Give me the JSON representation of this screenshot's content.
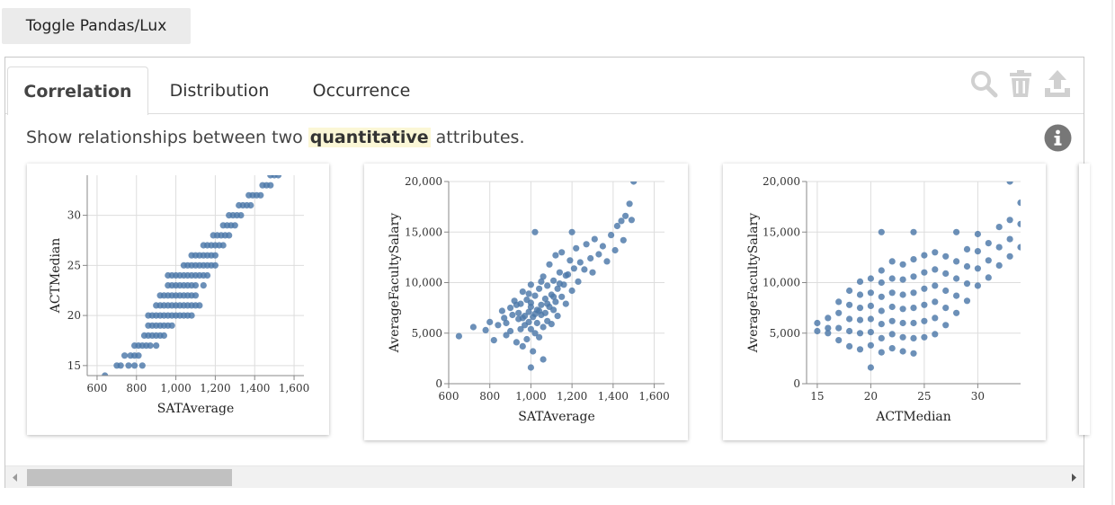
{
  "toggle": {
    "label": "Toggle Pandas/Lux"
  },
  "tabs": [
    {
      "label": "Correlation",
      "active": true
    },
    {
      "label": "Distribution",
      "active": false
    },
    {
      "label": "Occurrence",
      "active": false
    }
  ],
  "toolbar": {
    "icons": [
      "search-icon",
      "trash-icon",
      "upload-icon"
    ],
    "icon_color": "#d0d0d0"
  },
  "description": {
    "before": "Show relationships between two ",
    "highlight": "quantitative",
    "after": " attributes."
  },
  "info": {
    "icon": "info-icon",
    "color": "#777777"
  },
  "colors": {
    "mark": "#4c78a8",
    "grid": "#dddddd",
    "highlight": "#fbf7d6"
  },
  "chart_data": [
    {
      "type": "scatter",
      "xlabel": "SATAverage",
      "ylabel": "ACTMedian",
      "xlim": [
        550,
        1650
      ],
      "ylim": [
        14,
        34
      ],
      "xticks": [
        600,
        800,
        1000,
        1200,
        1400,
        1600
      ],
      "xtick_labels": [
        "600",
        "800",
        "1,000",
        "1,200",
        "1,400",
        "1,600"
      ],
      "yticks": [
        15,
        20,
        25,
        30
      ],
      "ytick_labels": [
        "15",
        "20",
        "25",
        "30"
      ],
      "points": [
        [
          640,
          14
        ],
        [
          700,
          15
        ],
        [
          720,
          15
        ],
        [
          760,
          15
        ],
        [
          790,
          15
        ],
        [
          830,
          15
        ],
        [
          740,
          16
        ],
        [
          770,
          16
        ],
        [
          790,
          16
        ],
        [
          810,
          16
        ],
        [
          790,
          17
        ],
        [
          810,
          17
        ],
        [
          830,
          17
        ],
        [
          850,
          17
        ],
        [
          870,
          17
        ],
        [
          900,
          17
        ],
        [
          840,
          18
        ],
        [
          860,
          18
        ],
        [
          880,
          18
        ],
        [
          900,
          18
        ],
        [
          920,
          18
        ],
        [
          940,
          18
        ],
        [
          860,
          19
        ],
        [
          880,
          19
        ],
        [
          900,
          19
        ],
        [
          920,
          19
        ],
        [
          940,
          19
        ],
        [
          960,
          19
        ],
        [
          980,
          19
        ],
        [
          860,
          20
        ],
        [
          880,
          20
        ],
        [
          900,
          20
        ],
        [
          920,
          20
        ],
        [
          940,
          20
        ],
        [
          960,
          20
        ],
        [
          980,
          20
        ],
        [
          1000,
          20
        ],
        [
          1020,
          20
        ],
        [
          1040,
          20
        ],
        [
          1060,
          20
        ],
        [
          1080,
          20
        ],
        [
          900,
          21
        ],
        [
          920,
          21
        ],
        [
          940,
          21
        ],
        [
          960,
          21
        ],
        [
          980,
          21
        ],
        [
          1000,
          21
        ],
        [
          1020,
          21
        ],
        [
          1040,
          21
        ],
        [
          1060,
          21
        ],
        [
          1080,
          21
        ],
        [
          1100,
          21
        ],
        [
          1120,
          21
        ],
        [
          920,
          22
        ],
        [
          940,
          22
        ],
        [
          960,
          22
        ],
        [
          980,
          22
        ],
        [
          1000,
          22
        ],
        [
          1020,
          22
        ],
        [
          1040,
          22
        ],
        [
          1060,
          22
        ],
        [
          1080,
          22
        ],
        [
          1100,
          22
        ],
        [
          960,
          23
        ],
        [
          980,
          23
        ],
        [
          1000,
          23
        ],
        [
          1020,
          23
        ],
        [
          1040,
          23
        ],
        [
          1060,
          23
        ],
        [
          1080,
          23
        ],
        [
          1100,
          23
        ],
        [
          1140,
          23
        ],
        [
          960,
          24
        ],
        [
          980,
          24
        ],
        [
          1000,
          24
        ],
        [
          1020,
          24
        ],
        [
          1040,
          24
        ],
        [
          1060,
          24
        ],
        [
          1080,
          24
        ],
        [
          1100,
          24
        ],
        [
          1120,
          24
        ],
        [
          1140,
          24
        ],
        [
          1160,
          24
        ],
        [
          1040,
          25
        ],
        [
          1060,
          25
        ],
        [
          1080,
          25
        ],
        [
          1100,
          25
        ],
        [
          1120,
          25
        ],
        [
          1140,
          25
        ],
        [
          1160,
          25
        ],
        [
          1180,
          25
        ],
        [
          1200,
          25
        ],
        [
          1080,
          26
        ],
        [
          1100,
          26
        ],
        [
          1120,
          26
        ],
        [
          1140,
          26
        ],
        [
          1160,
          26
        ],
        [
          1180,
          26
        ],
        [
          1200,
          26
        ],
        [
          1140,
          27
        ],
        [
          1160,
          27
        ],
        [
          1180,
          27
        ],
        [
          1200,
          27
        ],
        [
          1220,
          27
        ],
        [
          1240,
          27
        ],
        [
          1190,
          28
        ],
        [
          1210,
          28
        ],
        [
          1230,
          28
        ],
        [
          1250,
          28
        ],
        [
          1270,
          28
        ],
        [
          1240,
          29
        ],
        [
          1260,
          29
        ],
        [
          1280,
          29
        ],
        [
          1300,
          29
        ],
        [
          1270,
          30
        ],
        [
          1290,
          30
        ],
        [
          1310,
          30
        ],
        [
          1330,
          30
        ],
        [
          1320,
          31
        ],
        [
          1340,
          31
        ],
        [
          1360,
          31
        ],
        [
          1380,
          31
        ],
        [
          1370,
          32
        ],
        [
          1390,
          32
        ],
        [
          1410,
          32
        ],
        [
          1430,
          32
        ],
        [
          1440,
          33
        ],
        [
          1460,
          33
        ],
        [
          1480,
          33
        ],
        [
          1480,
          34
        ],
        [
          1500,
          34
        ],
        [
          1520,
          34
        ]
      ]
    },
    {
      "type": "scatter",
      "xlabel": "SATAverage",
      "ylabel": "AverageFacultySalary",
      "xlim": [
        600,
        1650
      ],
      "ylim": [
        0,
        20000
      ],
      "xticks": [
        600,
        800,
        1000,
        1200,
        1400,
        1600
      ],
      "xtick_labels": [
        "600",
        "800",
        "1,000",
        "1,200",
        "1,400",
        "1,600"
      ],
      "yticks": [
        0,
        5000,
        10000,
        15000,
        20000
      ],
      "ytick_labels": [
        "0",
        "5,000",
        "10,000",
        "15,000",
        "20,000"
      ],
      "points": [
        [
          650,
          4700
        ],
        [
          720,
          5600
        ],
        [
          780,
          5300
        ],
        [
          800,
          6100
        ],
        [
          820,
          4300
        ],
        [
          840,
          5800
        ],
        [
          860,
          7200
        ],
        [
          880,
          6000
        ],
        [
          880,
          4800
        ],
        [
          900,
          7500
        ],
        [
          900,
          5200
        ],
        [
          910,
          6800
        ],
        [
          920,
          8200
        ],
        [
          930,
          4100
        ],
        [
          940,
          6400
        ],
        [
          950,
          7900
        ],
        [
          950,
          5400
        ],
        [
          960,
          9100
        ],
        [
          960,
          3700
        ],
        [
          970,
          6700
        ],
        [
          970,
          5800
        ],
        [
          980,
          8300
        ],
        [
          980,
          4400
        ],
        [
          990,
          7100
        ],
        [
          990,
          6100
        ],
        [
          1000,
          9800
        ],
        [
          1000,
          5400
        ],
        [
          1000,
          7600
        ],
        [
          1010,
          3200
        ],
        [
          1010,
          6600
        ],
        [
          1020,
          8700
        ],
        [
          1020,
          5000
        ],
        [
          1020,
          15000
        ],
        [
          1030,
          7300
        ],
        [
          1030,
          6000
        ],
        [
          1040,
          9400
        ],
        [
          1040,
          4600
        ],
        [
          1050,
          7800
        ],
        [
          1050,
          6800
        ],
        [
          1060,
          10600
        ],
        [
          1060,
          5600
        ],
        [
          1070,
          8400
        ],
        [
          1070,
          7000
        ],
        [
          1080,
          9700
        ],
        [
          1080,
          6200
        ],
        [
          1090,
          11800
        ],
        [
          1090,
          7600
        ],
        [
          1100,
          8800
        ],
        [
          1100,
          5900
        ],
        [
          1110,
          10200
        ],
        [
          1110,
          7300
        ],
        [
          1120,
          12700
        ],
        [
          1120,
          8100
        ],
        [
          1130,
          9400
        ],
        [
          1130,
          6700
        ],
        [
          1140,
          11000
        ],
        [
          1150,
          8600
        ],
        [
          1150,
          13000
        ],
        [
          1160,
          9800
        ],
        [
          1170,
          7900
        ],
        [
          1180,
          10800
        ],
        [
          1190,
          12200
        ],
        [
          1200,
          9200
        ],
        [
          1210,
          11400
        ],
        [
          1220,
          13400
        ],
        [
          1230,
          10100
        ],
        [
          1240,
          12000
        ],
        [
          1260,
          11300
        ],
        [
          1270,
          13800
        ],
        [
          1290,
          12400
        ],
        [
          1300,
          11000
        ],
        [
          1310,
          14300
        ],
        [
          1330,
          12800
        ],
        [
          1350,
          13600
        ],
        [
          1370,
          12100
        ],
        [
          1390,
          14700
        ],
        [
          1410,
          13200
        ],
        [
          1420,
          15600
        ],
        [
          1440,
          16100
        ],
        [
          1450,
          14200
        ],
        [
          1460,
          16600
        ],
        [
          1480,
          17800
        ],
        [
          1490,
          16200
        ],
        [
          1500,
          20000
        ],
        [
          1200,
          15000
        ],
        [
          1060,
          2400
        ],
        [
          1000,
          1600
        ],
        [
          940,
          7000
        ],
        [
          960,
          6500
        ],
        [
          1040,
          7200
        ],
        [
          1080,
          7900
        ],
        [
          1020,
          6900
        ],
        [
          990,
          8900
        ],
        [
          1110,
          8600
        ],
        [
          1140,
          9900
        ],
        [
          1170,
          10700
        ],
        [
          1050,
          10100
        ],
        [
          930,
          7800
        ],
        [
          870,
          6500
        ],
        [
          1000,
          8000
        ]
      ]
    },
    {
      "type": "scatter",
      "xlabel": "ACTMedian",
      "ylabel": "AverageFacultySalary",
      "xlim": [
        14,
        34
      ],
      "ylim": [
        0,
        20000
      ],
      "xticks": [
        15,
        20,
        25,
        30
      ],
      "xtick_labels": [
        "15",
        "20",
        "25",
        "30"
      ],
      "yticks": [
        0,
        5000,
        10000,
        15000,
        20000
      ],
      "ytick_labels": [
        "0",
        "5,000",
        "10,000",
        "15,000",
        "20,000"
      ],
      "points": [
        [
          15,
          5200
        ],
        [
          15,
          6000
        ],
        [
          16,
          5000
        ],
        [
          16,
          6500
        ],
        [
          17,
          4300
        ],
        [
          17,
          5500
        ],
        [
          17,
          7000
        ],
        [
          17,
          8100
        ],
        [
          18,
          3700
        ],
        [
          18,
          5200
        ],
        [
          18,
          6400
        ],
        [
          18,
          7800
        ],
        [
          18,
          9200
        ],
        [
          19,
          3400
        ],
        [
          19,
          5000
        ],
        [
          19,
          6300
        ],
        [
          19,
          7500
        ],
        [
          19,
          8800
        ],
        [
          19,
          10100
        ],
        [
          20,
          1600
        ],
        [
          20,
          3800
        ],
        [
          20,
          5100
        ],
        [
          20,
          6400
        ],
        [
          20,
          7700
        ],
        [
          20,
          9000
        ],
        [
          20,
          10400
        ],
        [
          21,
          3100
        ],
        [
          21,
          4500
        ],
        [
          21,
          5900
        ],
        [
          21,
          7200
        ],
        [
          21,
          8600
        ],
        [
          21,
          10000
        ],
        [
          21,
          11200
        ],
        [
          21,
          15000
        ],
        [
          22,
          3500
        ],
        [
          22,
          4900
        ],
        [
          22,
          6200
        ],
        [
          22,
          7600
        ],
        [
          22,
          9000
        ],
        [
          22,
          10400
        ],
        [
          22,
          12100
        ],
        [
          23,
          3200
        ],
        [
          23,
          4600
        ],
        [
          23,
          6000
        ],
        [
          23,
          7400
        ],
        [
          23,
          8800
        ],
        [
          23,
          10300
        ],
        [
          23,
          11800
        ],
        [
          24,
          3000
        ],
        [
          24,
          4500
        ],
        [
          24,
          6000
        ],
        [
          24,
          7500
        ],
        [
          24,
          9000
        ],
        [
          24,
          10600
        ],
        [
          24,
          12300
        ],
        [
          24,
          15000
        ],
        [
          25,
          4600
        ],
        [
          25,
          6200
        ],
        [
          25,
          7800
        ],
        [
          25,
          9400
        ],
        [
          25,
          11000
        ],
        [
          25,
          12700
        ],
        [
          26,
          4900
        ],
        [
          26,
          6500
        ],
        [
          26,
          8100
        ],
        [
          26,
          9700
        ],
        [
          26,
          11300
        ],
        [
          26,
          13000
        ],
        [
          27,
          5800
        ],
        [
          27,
          7500
        ],
        [
          27,
          9200
        ],
        [
          27,
          10900
        ],
        [
          27,
          12600
        ],
        [
          28,
          7000
        ],
        [
          28,
          8700
        ],
        [
          28,
          10400
        ],
        [
          28,
          12100
        ],
        [
          28,
          15000
        ],
        [
          29,
          8200
        ],
        [
          29,
          9900
        ],
        [
          29,
          11600
        ],
        [
          29,
          13300
        ],
        [
          30,
          9700
        ],
        [
          30,
          11400
        ],
        [
          30,
          13100
        ],
        [
          30,
          14800
        ],
        [
          31,
          10500
        ],
        [
          31,
          12200
        ],
        [
          31,
          13900
        ],
        [
          32,
          11700
        ],
        [
          32,
          13500
        ],
        [
          32,
          15500
        ],
        [
          33,
          12600
        ],
        [
          33,
          14300
        ],
        [
          33,
          16200
        ],
        [
          33,
          20000
        ],
        [
          34,
          13500
        ],
        [
          34,
          15800
        ],
        [
          34,
          17900
        ],
        [
          16,
          5500
        ]
      ]
    }
  ]
}
